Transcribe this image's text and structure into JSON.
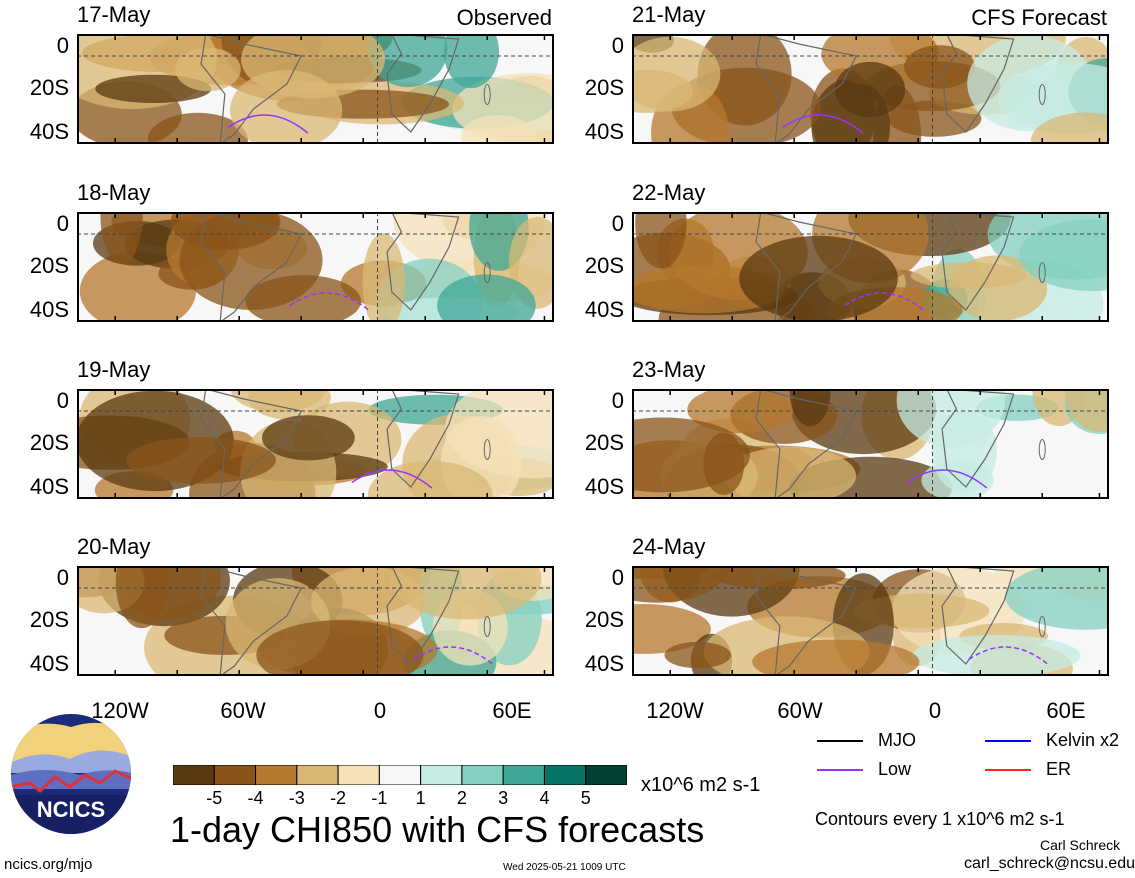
{
  "panels_left": [
    {
      "date": "17-May",
      "tag": "Observed"
    },
    {
      "date": "18-May",
      "tag": ""
    },
    {
      "date": "19-May",
      "tag": ""
    },
    {
      "date": "20-May",
      "tag": ""
    }
  ],
  "panels_right": [
    {
      "date": "21-May",
      "tag": "CFS Forecast"
    },
    {
      "date": "22-May",
      "tag": ""
    },
    {
      "date": "23-May",
      "tag": ""
    },
    {
      "date": "24-May",
      "tag": ""
    }
  ],
  "y_ticks": [
    "0",
    "20S",
    "40S"
  ],
  "x_ticks": [
    "120W",
    "60W",
    "0",
    "60E"
  ],
  "legend": {
    "items": [
      {
        "label": "MJO",
        "color": "#000000"
      },
      {
        "label": "Kelvin x2",
        "color": "#0000ff"
      },
      {
        "label": "Low",
        "color": "#9933ff"
      },
      {
        "label": "ER",
        "color": "#ff2222"
      }
    ],
    "contours": "Contours every 1 x10^6 m2 s-1"
  },
  "colorbar": {
    "labels": [
      "-5",
      "-4",
      "-3",
      "-2",
      "-1",
      "1",
      "2",
      "3",
      "4",
      "5"
    ],
    "colors": [
      "#5a3a10",
      "#8a5419",
      "#b5782e",
      "#d9b874",
      "#f4e2b8",
      "#f7f7f7",
      "#c6ebe3",
      "#83d0c2",
      "#3fa796",
      "#077566",
      "#033f35"
    ],
    "units": "x10^6 m2 s-1"
  },
  "title": "1-day CHI850 with CFS forecasts",
  "footer": {
    "site": "ncics.org/mjo",
    "timestamp": "Wed 2025-05-21 1009 UTC",
    "author": "Carl Schreck",
    "email": "carl_schreck@ncsu.edu",
    "logo_text": "NCICS"
  }
}
